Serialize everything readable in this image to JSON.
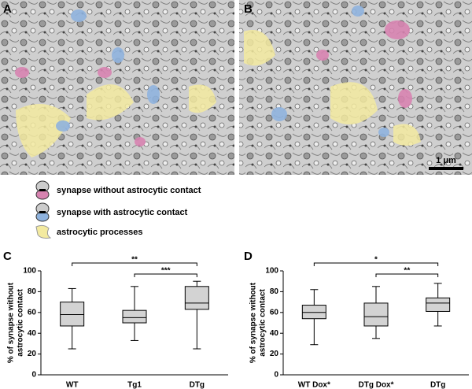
{
  "panels": [
    "A",
    "B",
    "C",
    "D"
  ],
  "scale_bar": "1 μm",
  "legend": [
    "synapse without astrocytic contact",
    "synapse with astrocytic contact",
    "astrocytic processes"
  ],
  "chart_data": [
    {
      "type": "box",
      "ylabel": [
        "% of synapse without",
        "astrocytic contact"
      ],
      "categories": [
        "WT",
        "Tg1",
        "DTg"
      ],
      "color": "#d3d3d3",
      "min": [
        25,
        33,
        25
      ],
      "q1": [
        47,
        50,
        63
      ],
      "median": [
        58,
        55,
        69
      ],
      "q3": [
        70,
        62,
        85
      ],
      "max": [
        83,
        85,
        90
      ],
      "ylim": [
        0,
        100
      ],
      "yticks": [
        0,
        20,
        40,
        60,
        80,
        100
      ],
      "significance": [
        {
          "groups": [
            0,
            2
          ],
          "label": "**"
        },
        {
          "groups": [
            1,
            2
          ],
          "label": "***"
        }
      ]
    },
    {
      "type": "box",
      "ylabel": [
        "% of synapse without",
        "astrocytic contact"
      ],
      "categories": [
        "WT Dox*",
        "DTg Dox*",
        "DTg"
      ],
      "color": "#d3d3d3",
      "min": [
        29,
        35,
        47
      ],
      "q1": [
        54,
        47,
        61
      ],
      "median": [
        60,
        56,
        69
      ],
      "q3": [
        67,
        69,
        74
      ],
      "max": [
        82,
        85,
        88
      ],
      "ylim": [
        0,
        100
      ],
      "yticks": [
        0,
        20,
        40,
        60,
        80,
        100
      ],
      "significance": [
        {
          "groups": [
            0,
            2
          ],
          "label": "*"
        },
        {
          "groups": [
            1,
            2
          ],
          "label": "**"
        }
      ]
    }
  ]
}
